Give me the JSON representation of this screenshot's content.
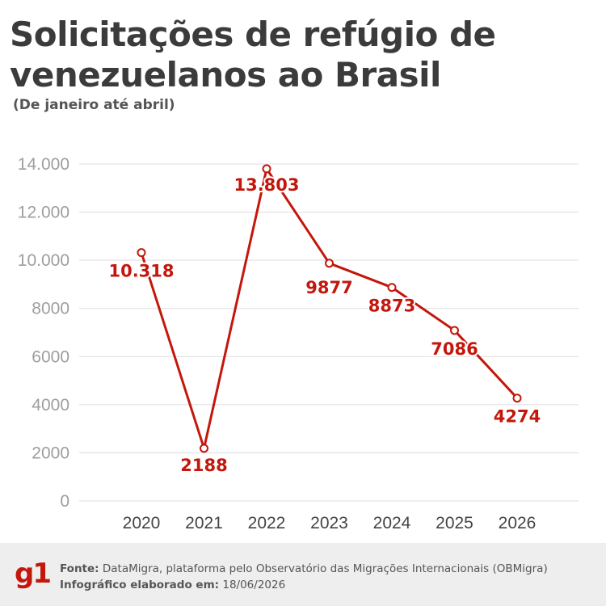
{
  "title": "Solicitações de refúgio de venezuelanos ao Brasil",
  "subtitle": "(De janeiro até abril)",
  "footer": {
    "logo": "g1",
    "source_label": "Fonte:",
    "source_text": "DataMigra, plataforma pelo Observatório das Migrações Internacionais (OBMigra)",
    "date_label": "Infográfico elaborado em:",
    "date_text": "18/06/2026"
  },
  "colors": {
    "line": "#c4170c",
    "grid": "#dddddd",
    "tick": "#9e9e9e",
    "xtick": "#444444"
  },
  "chart_data": {
    "type": "line",
    "categories": [
      "2020",
      "2021",
      "2022",
      "2023",
      "2024",
      "2025",
      "2026"
    ],
    "values": [
      10318,
      2188,
      13803,
      9877,
      8873,
      7086,
      4274
    ],
    "data_labels": [
      "10.318",
      "2188",
      "13.803",
      "9877",
      "8873",
      "7086",
      "4274"
    ],
    "y_ticks": [
      0,
      2000,
      4000,
      6000,
      8000,
      10000,
      12000,
      14000
    ],
    "y_tick_labels": [
      "0",
      "2000",
      "4000",
      "6000",
      "8000",
      "10.000",
      "12.000",
      "14.000"
    ],
    "ylim": [
      0,
      14000
    ],
    "grid": true,
    "xlabel": "",
    "ylabel": ""
  }
}
